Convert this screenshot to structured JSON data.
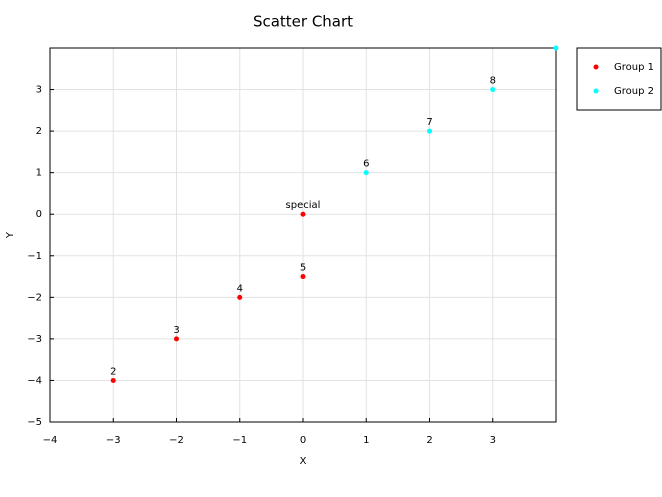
{
  "chart_data": {
    "type": "scatter",
    "title": "Scatter Chart",
    "x_label": "X",
    "y_label": "Y",
    "xlim": [
      -4,
      4
    ],
    "ylim": [
      -5,
      4
    ],
    "xticks": [
      {
        "value": -4,
        "label": "−4"
      },
      {
        "value": -3,
        "label": "−3"
      },
      {
        "value": -2,
        "label": "−2"
      },
      {
        "value": -1,
        "label": "−1"
      },
      0,
      1,
      2,
      3
    ],
    "yticks": [
      {
        "value": -5,
        "label": "−5"
      },
      {
        "value": -4,
        "label": "−4"
      },
      {
        "value": -3,
        "label": "−3"
      },
      {
        "value": -2,
        "label": "−2"
      },
      {
        "value": -1,
        "label": "−1"
      },
      0,
      1,
      2,
      3
    ],
    "grid": true,
    "legend": "outside-right",
    "series": [
      {
        "name": "Group 1",
        "color": "#ff0000",
        "x": [
          -3,
          -2,
          -1,
          0,
          0
        ],
        "values": [
          -4,
          -3,
          -2,
          -1.5,
          0
        ],
        "labels": [
          "2",
          "3",
          "4",
          "5",
          "special"
        ]
      },
      {
        "name": "Group 2",
        "color": "#00ffff",
        "x": [
          1,
          2,
          3,
          4
        ],
        "values": [
          1,
          2,
          3,
          4
        ],
        "labels": [
          "6",
          "7",
          "8",
          null
        ]
      }
    ]
  }
}
